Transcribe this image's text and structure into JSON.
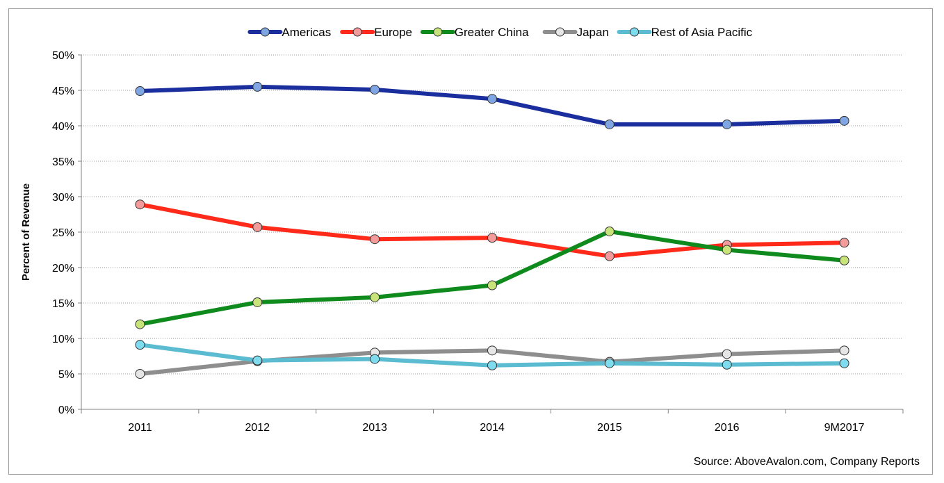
{
  "chart_data": {
    "type": "line",
    "title": "",
    "xlabel": "",
    "ylabel": "Percent of Revenue",
    "categories": [
      "2011",
      "2012",
      "2013",
      "2014",
      "2015",
      "2016",
      "9M2017"
    ],
    "ylim": [
      0,
      50
    ],
    "yticks": [
      "0%",
      "5%",
      "10%",
      "15%",
      "20%",
      "25%",
      "30%",
      "35%",
      "40%",
      "45%",
      "50%"
    ],
    "grid": "horizontal dotted",
    "legend_position": "top",
    "series": [
      {
        "name": "Americas",
        "color": "#1b2e9e",
        "marker_color": "#7fa6e3",
        "values": [
          44.9,
          45.5,
          45.1,
          43.8,
          40.2,
          40.2,
          40.7
        ]
      },
      {
        "name": "Europe",
        "color": "#ff2a1a",
        "marker_color": "#f39a9a",
        "values": [
          28.9,
          25.7,
          24.0,
          24.2,
          21.6,
          23.2,
          23.5
        ]
      },
      {
        "name": "Greater China",
        "color": "#0f8a1c",
        "marker_color": "#c8e37a",
        "values": [
          12.0,
          15.1,
          15.8,
          17.5,
          25.1,
          22.5,
          21.0
        ]
      },
      {
        "name": "Japan",
        "color": "#8e8e8e",
        "marker_color": "#e6e6e6",
        "values": [
          5.0,
          6.8,
          8.0,
          8.3,
          6.7,
          7.8,
          8.3
        ]
      },
      {
        "name": "Rest of Asia Pacific",
        "color": "#5bbcd1",
        "marker_color": "#7fdcef",
        "values": [
          9.1,
          6.9,
          7.1,
          6.2,
          6.5,
          6.3,
          6.5
        ]
      }
    ],
    "source": "Source: AboveAvalon.com, Company Reports"
  }
}
